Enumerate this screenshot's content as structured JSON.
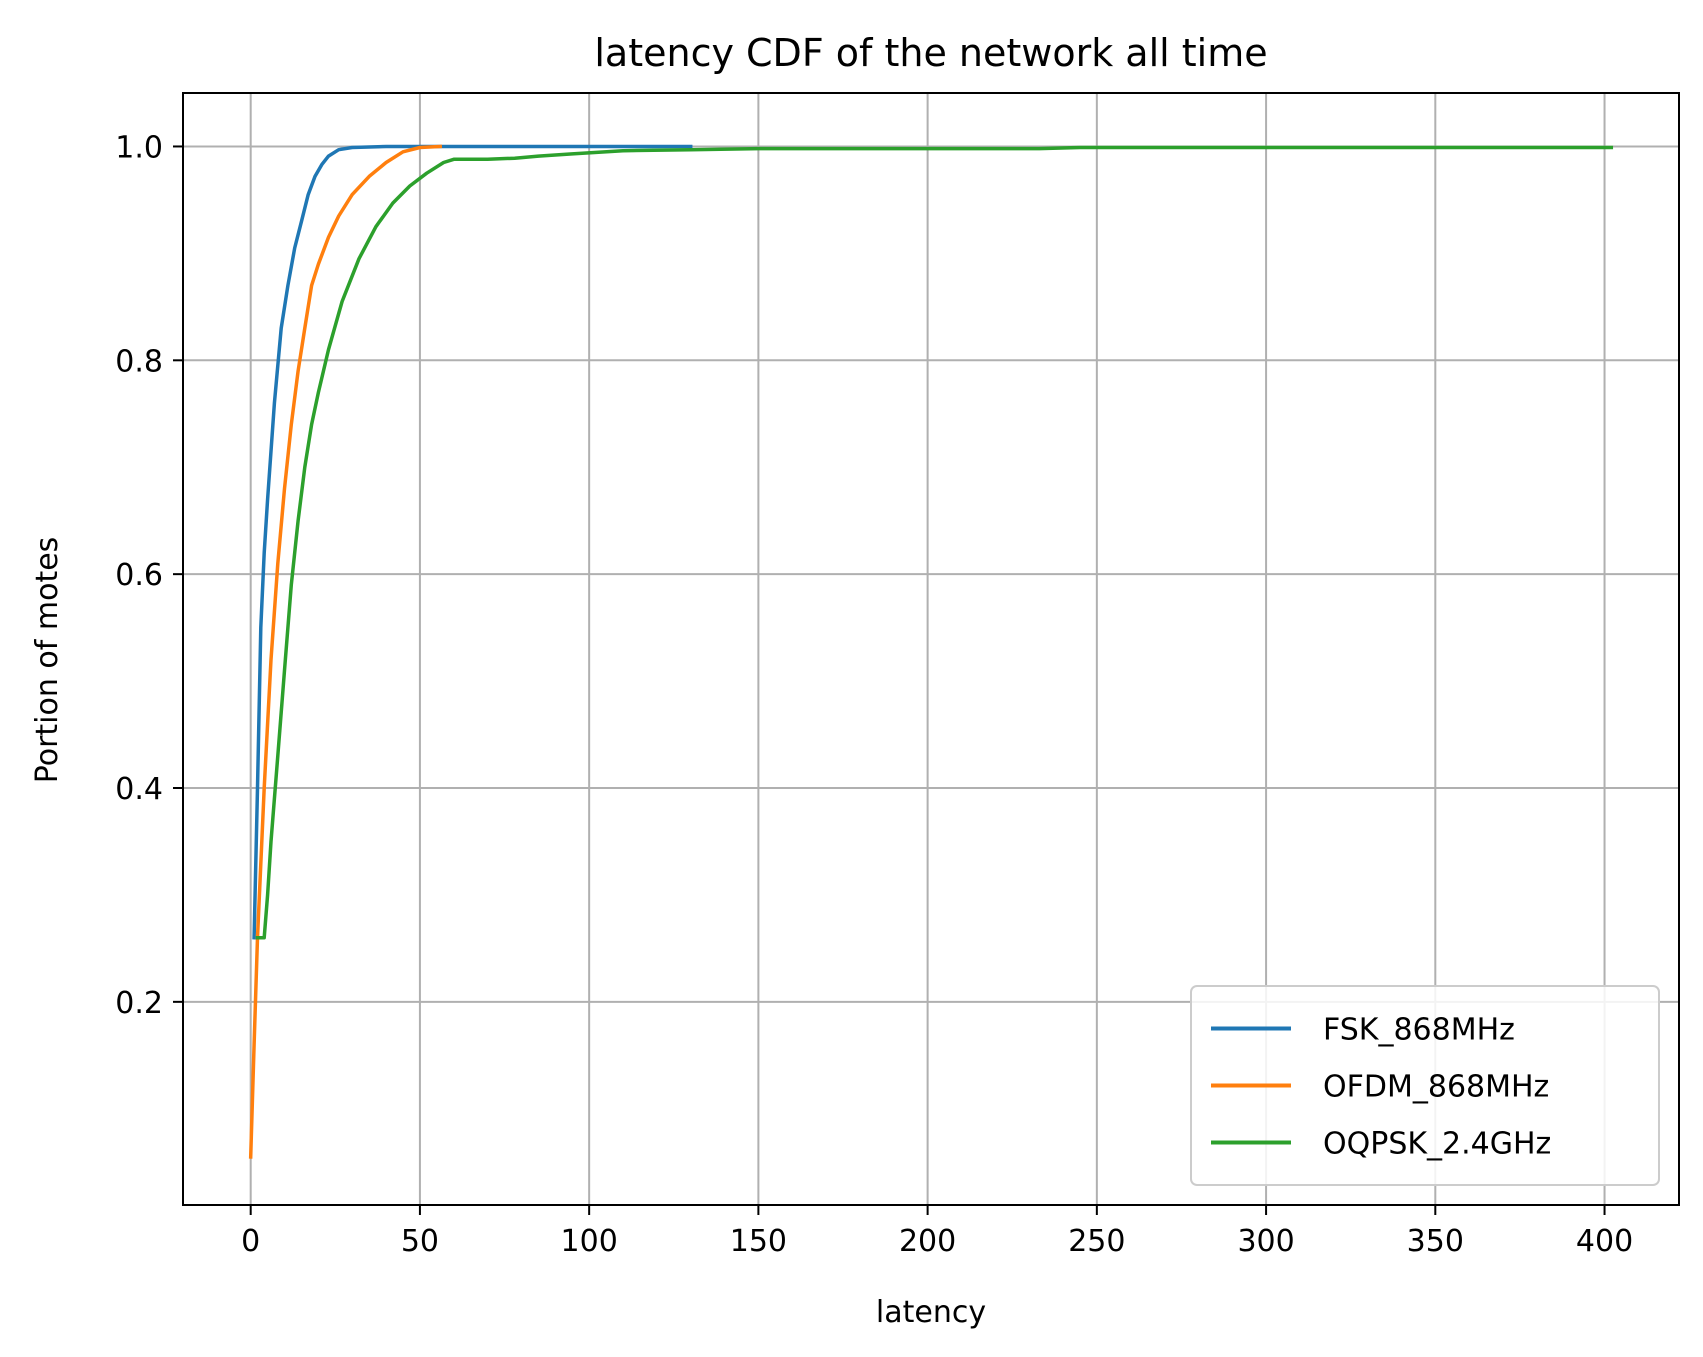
{
  "chart_data": {
    "type": "line",
    "title": "latency CDF of the network all time",
    "xlabel": "latency",
    "ylabel": "Portion of motes",
    "xlim": [
      -20,
      422
    ],
    "ylim": [
      0.01,
      1.05
    ],
    "xticks": [
      0,
      50,
      100,
      150,
      200,
      250,
      300,
      350,
      400
    ],
    "xtick_labels": [
      "0",
      "50",
      "100",
      "150",
      "200",
      "250",
      "300",
      "350",
      "400"
    ],
    "yticks": [
      0.2,
      0.4,
      0.6,
      0.8,
      1.0
    ],
    "ytick_labels": [
      "0.2",
      "0.4",
      "0.6",
      "0.8",
      "1.0"
    ],
    "grid": true,
    "legend_position": "bottom-right",
    "series": [
      {
        "name": "FSK_868MHz",
        "color": "#1f77b4",
        "points": [
          [
            1,
            0.26
          ],
          [
            2,
            0.4
          ],
          [
            3,
            0.55
          ],
          [
            4,
            0.62
          ],
          [
            5,
            0.67
          ],
          [
            7,
            0.76
          ],
          [
            9,
            0.83
          ],
          [
            11,
            0.87
          ],
          [
            13,
            0.905
          ],
          [
            15,
            0.93
          ],
          [
            17,
            0.955
          ],
          [
            19,
            0.972
          ],
          [
            21,
            0.983
          ],
          [
            23,
            0.991
          ],
          [
            26,
            0.997
          ],
          [
            30,
            0.999
          ],
          [
            40,
            1.0
          ],
          [
            60,
            1.0
          ],
          [
            90,
            1.0
          ],
          [
            130,
            1.0
          ]
        ]
      },
      {
        "name": "OFDM_868MHz",
        "color": "#ff7f0e",
        "points": [
          [
            0,
            0.055
          ],
          [
            1,
            0.16
          ],
          [
            2,
            0.26
          ],
          [
            4,
            0.4
          ],
          [
            6,
            0.52
          ],
          [
            8,
            0.61
          ],
          [
            10,
            0.68
          ],
          [
            12,
            0.74
          ],
          [
            14,
            0.79
          ],
          [
            16,
            0.83
          ],
          [
            18,
            0.87
          ],
          [
            20,
            0.89
          ],
          [
            23,
            0.915
          ],
          [
            26,
            0.935
          ],
          [
            30,
            0.955
          ],
          [
            35,
            0.972
          ],
          [
            40,
            0.985
          ],
          [
            45,
            0.995
          ],
          [
            50,
            0.999
          ],
          [
            56,
            1.0
          ]
        ]
      },
      {
        "name": "OQPSK_2.4GHz",
        "color": "#2ca02c",
        "points": [
          [
            2,
            0.26
          ],
          [
            4,
            0.26
          ],
          [
            5,
            0.3
          ],
          [
            6,
            0.35
          ],
          [
            8,
            0.43
          ],
          [
            10,
            0.51
          ],
          [
            12,
            0.59
          ],
          [
            14,
            0.65
          ],
          [
            16,
            0.7
          ],
          [
            18,
            0.74
          ],
          [
            20,
            0.77
          ],
          [
            23,
            0.81
          ],
          [
            27,
            0.855
          ],
          [
            32,
            0.895
          ],
          [
            37,
            0.925
          ],
          [
            42,
            0.947
          ],
          [
            47,
            0.963
          ],
          [
            52,
            0.975
          ],
          [
            57,
            0.985
          ],
          [
            60,
            0.988
          ],
          [
            70,
            0.988
          ],
          [
            78,
            0.989
          ],
          [
            85,
            0.991
          ],
          [
            95,
            0.993
          ],
          [
            110,
            0.996
          ],
          [
            130,
            0.997
          ],
          [
            150,
            0.998
          ],
          [
            200,
            0.998
          ],
          [
            233,
            0.998
          ],
          [
            245,
            0.999
          ],
          [
            300,
            0.999
          ],
          [
            402,
            0.999
          ]
        ]
      }
    ]
  }
}
